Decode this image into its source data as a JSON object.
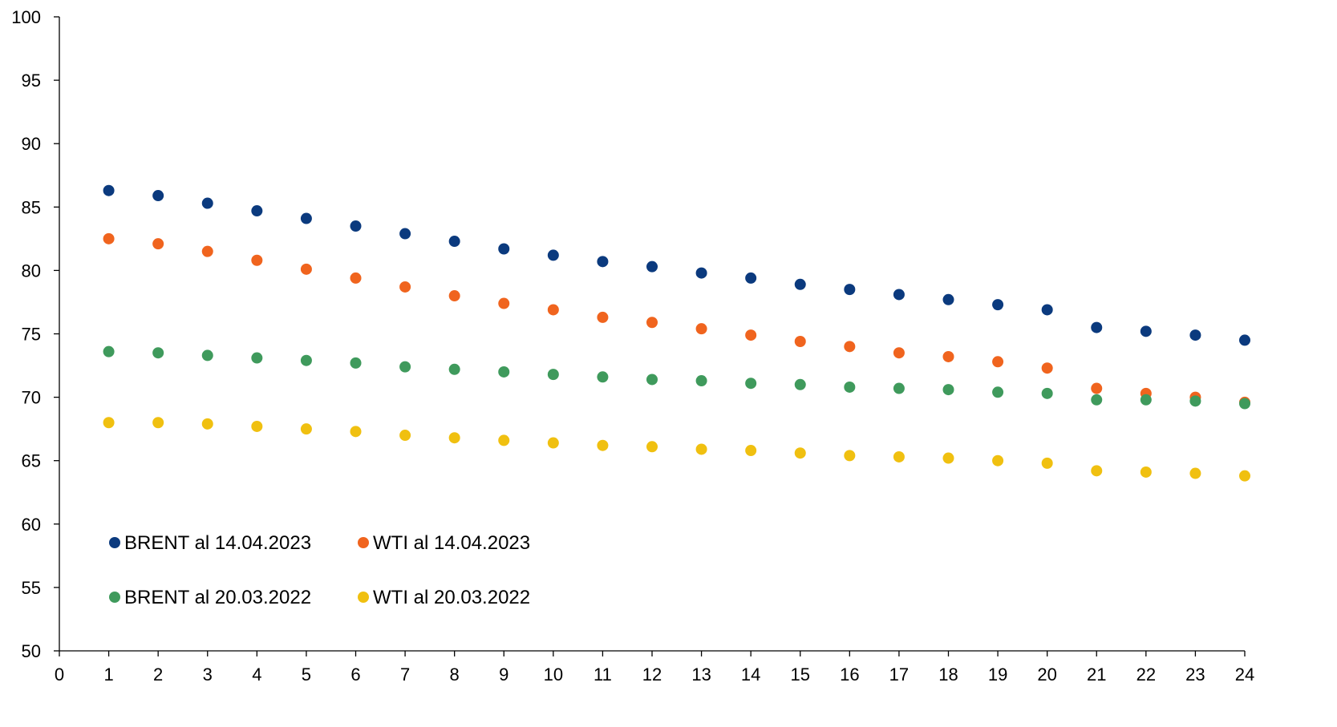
{
  "chart_data": {
    "type": "scatter",
    "title": "",
    "xlabel": "",
    "ylabel": "",
    "xlim": [
      0,
      24
    ],
    "ylim": [
      50,
      100
    ],
    "x_ticks": [
      "0",
      "1",
      "2",
      "3",
      "4",
      "5",
      "6",
      "7",
      "8",
      "9",
      "10",
      "11",
      "12",
      "13",
      "14",
      "15",
      "16",
      "17",
      "18",
      "19",
      "20",
      "21",
      "22",
      "23",
      "24"
    ],
    "y_ticks": [
      "50",
      "55",
      "60",
      "65",
      "70",
      "75",
      "80",
      "85",
      "90",
      "95",
      "100"
    ],
    "grid": false,
    "legend_position": "bottom-left",
    "x": [
      1,
      2,
      3,
      4,
      5,
      6,
      7,
      8,
      9,
      10,
      11,
      12,
      13,
      14,
      15,
      16,
      17,
      18,
      19,
      20,
      21,
      22,
      23,
      24
    ],
    "series": [
      {
        "name": "BRENT al 14.04.2023",
        "color": "#0b3a7e",
        "values": [
          86.3,
          85.9,
          85.3,
          84.7,
          84.1,
          83.5,
          82.9,
          82.3,
          81.7,
          81.2,
          80.7,
          80.3,
          79.8,
          79.4,
          78.9,
          78.5,
          78.1,
          77.7,
          77.3,
          76.9,
          75.5,
          75.2,
          74.9,
          74.5
        ]
      },
      {
        "name": "WTI al 14.04.2023",
        "color": "#f0641e",
        "values": [
          82.5,
          82.1,
          81.5,
          80.8,
          80.1,
          79.4,
          78.7,
          78.0,
          77.4,
          76.9,
          76.3,
          75.9,
          75.4,
          74.9,
          74.4,
          74.0,
          73.5,
          73.2,
          72.8,
          72.3,
          70.7,
          70.3,
          70.0,
          69.6
        ]
      },
      {
        "name": "BRENT al 20.03.2022",
        "color": "#3f9a5c",
        "values": [
          73.6,
          73.5,
          73.3,
          73.1,
          72.9,
          72.7,
          72.4,
          72.2,
          72.0,
          71.8,
          71.6,
          71.4,
          71.3,
          71.1,
          71.0,
          70.8,
          70.7,
          70.6,
          70.4,
          70.3,
          69.8,
          69.8,
          69.7,
          69.5
        ]
      },
      {
        "name": "WTI al 20.03.2022",
        "color": "#f0c010",
        "values": [
          68.0,
          68.0,
          67.9,
          67.7,
          67.5,
          67.3,
          67.0,
          66.8,
          66.6,
          66.4,
          66.2,
          66.1,
          65.9,
          65.8,
          65.6,
          65.4,
          65.3,
          65.2,
          65.0,
          64.8,
          64.2,
          64.1,
          64.0,
          63.8
        ]
      }
    ]
  }
}
